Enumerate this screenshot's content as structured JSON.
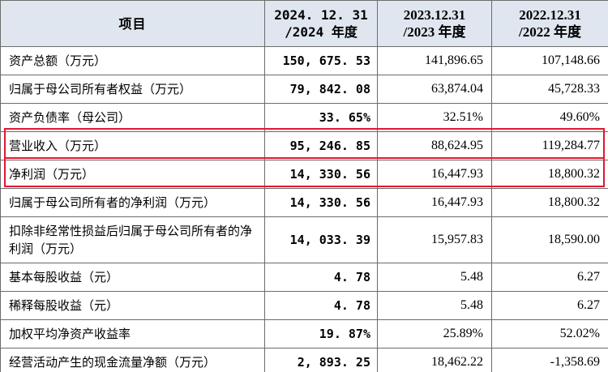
{
  "header": {
    "item": "项目",
    "col2024": [
      "2024. 12. 31",
      "/2024 年度"
    ],
    "col2023": [
      "2023.12.31",
      "/2023 年度"
    ],
    "col2022": [
      "2022.12.31",
      "/2022 年度"
    ]
  },
  "rows": [
    {
      "label": "资产总额（万元）",
      "v2024": "150, 675. 53",
      "v2023": "141,896.65",
      "v2022": "107,148.66"
    },
    {
      "label": "归属于母公司所有者权益（万元）",
      "v2024": "79, 842. 08",
      "v2023": "63,874.04",
      "v2022": "45,728.33"
    },
    {
      "label": "资产负债率（母公司）",
      "v2024": "33. 65%",
      "v2023": "32.51%",
      "v2022": "49.60%"
    },
    {
      "label": "营业收入（万元）",
      "v2024": "95, 246. 85",
      "v2023": "88,624.95",
      "v2022": "119,284.77"
    },
    {
      "label": "净利润（万元）",
      "v2024": "14, 330. 56",
      "v2023": "16,447.93",
      "v2022": "18,800.32"
    },
    {
      "label": "归属于母公司所有者的净利润（万元）",
      "v2024": "14, 330. 56",
      "v2023": "16,447.93",
      "v2022": "18,800.32"
    },
    {
      "label": "扣除非经常性损益后归属于母公司所有者的净利润（万元）",
      "v2024": "14, 033. 39",
      "v2023": "15,957.83",
      "v2022": "18,590.00"
    },
    {
      "label": "基本每股收益（元）",
      "v2024": "4. 78",
      "v2023": "5.48",
      "v2022": "6.27"
    },
    {
      "label": "稀释每股收益（元）",
      "v2024": "4. 78",
      "v2023": "5.48",
      "v2022": "6.27"
    },
    {
      "label": "加权平均净资产收益率",
      "v2024": "19. 87%",
      "v2023": "25.89%",
      "v2022": "52.02%"
    },
    {
      "label": "经营活动产生的现金流量净额（万元）",
      "v2024": "2, 893. 25",
      "v2023": "18,462.22",
      "v2022": "-1,358.69"
    }
  ],
  "colors": {
    "header_bg": "#dfe6f0",
    "border": "#6b6b6b",
    "highlight": "#e0192f"
  }
}
